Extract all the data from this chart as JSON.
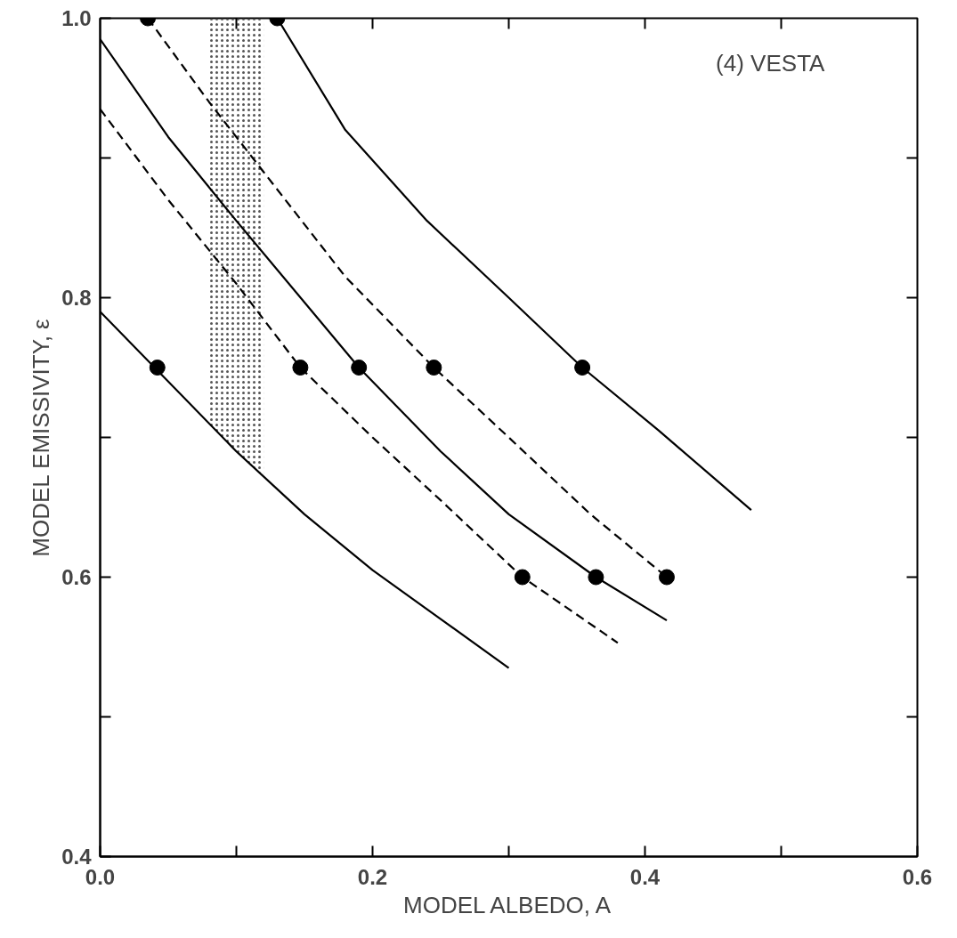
{
  "chart_data": {
    "type": "line",
    "xlabel": "MODEL ALBEDO, A",
    "ylabel": "MODEL EMISSIVITY, ε",
    "annotations": [
      "(4) VESTA"
    ],
    "xlim": [
      0.0,
      0.6
    ],
    "ylim": [
      0.4,
      1.0
    ],
    "xticks": [
      {
        "value": 0,
        "label": "0.0"
      },
      {
        "value": 0.1,
        "label": null
      },
      0.2,
      {
        "value": 0.3,
        "label": null
      },
      0.4,
      {
        "value": 0.5,
        "label": null
      },
      0.6
    ],
    "yticks": [
      0.4,
      {
        "value": 0.5,
        "label": null
      },
      0.6,
      {
        "value": 0.7,
        "label": null
      },
      0.8,
      {
        "value": 0.9,
        "label": null
      },
      {
        "value": 1,
        "label": "1.0"
      }
    ],
    "grid": false,
    "legend": false,
    "bands": [
      {
        "axis": "x",
        "from": 0.08,
        "to": 0.12,
        "color": "#555555"
      }
    ],
    "series": [
      {
        "color": "#000000",
        "line_style": "solid",
        "x": [
          0.0,
          0.04,
          0.1,
          0.15,
          0.2,
          0.25,
          0.3
        ],
        "values": [
          0.79,
          0.75,
          0.69,
          0.645,
          0.605,
          0.57,
          0.535
        ]
      },
      {
        "color": "#000000",
        "line_style": "dashed",
        "x": [
          0.0,
          0.05,
          0.1,
          0.147,
          0.2,
          0.25,
          0.31,
          0.38
        ],
        "values": [
          0.935,
          0.87,
          0.81,
          0.75,
          0.7,
          0.655,
          0.6,
          0.553
        ]
      },
      {
        "color": "#000000",
        "line_style": "solid",
        "x": [
          0.0,
          0.05,
          0.1,
          0.19,
          0.25,
          0.3,
          0.364,
          0.416
        ],
        "values": [
          0.985,
          0.915,
          0.855,
          0.75,
          0.69,
          0.645,
          0.6,
          0.569
        ]
      },
      {
        "color": "#000000",
        "line_style": "dashed",
        "x": [
          0.035,
          0.08,
          0.12,
          0.18,
          0.245,
          0.3,
          0.36,
          0.416
        ],
        "values": [
          1.0,
          0.94,
          0.89,
          0.815,
          0.75,
          0.7,
          0.645,
          0.6
        ]
      },
      {
        "color": "#000000",
        "line_style": "solid",
        "x": [
          0.13,
          0.18,
          0.24,
          0.3,
          0.354,
          0.41,
          0.478
        ],
        "values": [
          1.0,
          0.92,
          0.855,
          0.8,
          0.75,
          0.705,
          0.648
        ]
      },
      {
        "type": "scatter",
        "marker": "circle",
        "color": "#000000",
        "x": [
          0.035,
          0.13,
          0.042,
          0.147,
          0.19,
          0.245,
          0.354,
          0.31,
          0.364,
          0.416
        ],
        "values": [
          1.0,
          1.0,
          0.75,
          0.75,
          0.75,
          0.75,
          0.75,
          0.6,
          0.6,
          0.6
        ]
      }
    ]
  }
}
